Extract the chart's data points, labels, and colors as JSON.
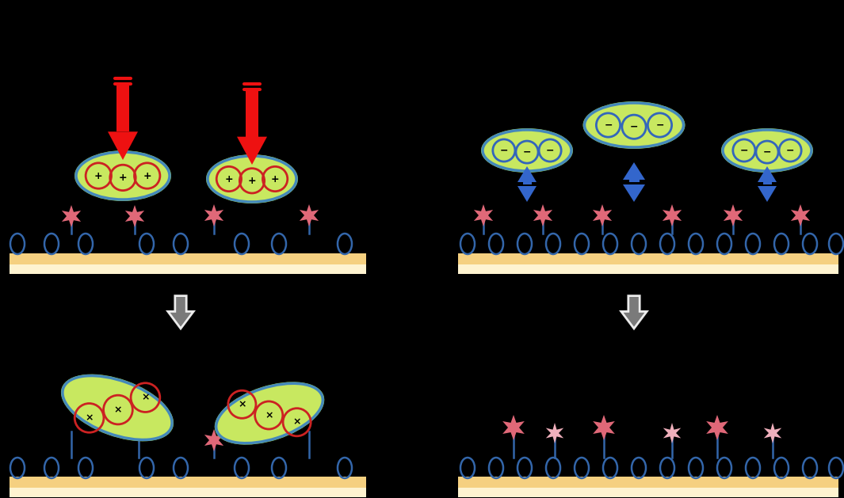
{
  "bg": "#000000",
  "surf_top": "#fef3d0",
  "surf_bot": "#f5d080",
  "ell_green": "#c8e860",
  "ell_green_dark": "#a0cc30",
  "ell_stroke": "#4488bb",
  "plus_ring": "#cc2222",
  "minus_ring": "#3366bb",
  "red_arrow": "#ee1111",
  "blue_arrow": "#3366cc",
  "star_bright": "#e06878",
  "star_light": "#f0b0bc",
  "oval_stroke": "#3366aa",
  "gray_stroke": "#aaaaaa",
  "gray_fill": "#888888",
  "x_ring": "#cc2222"
}
